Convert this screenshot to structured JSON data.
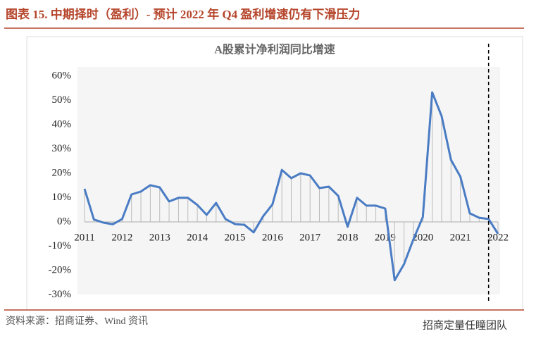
{
  "header": {
    "title": "图表 15. 中期择时（盈利）- 预计 2022 年 Q4 盈利增速仍有下滑压力"
  },
  "chart_data": {
    "type": "line",
    "title": "A股累计净利润同比增速",
    "x": [
      2011,
      2011.25,
      2011.5,
      2011.75,
      2012,
      2012.25,
      2012.5,
      2012.75,
      2013,
      2013.25,
      2013.5,
      2013.75,
      2014,
      2014.25,
      2014.5,
      2014.75,
      2015,
      2015.25,
      2015.5,
      2015.75,
      2016,
      2016.25,
      2016.5,
      2016.75,
      2017,
      2017.25,
      2017.5,
      2017.75,
      2018,
      2018.25,
      2018.5,
      2018.75,
      2019,
      2019.25,
      2019.5,
      2019.75,
      2020,
      2020.25,
      2020.5,
      2020.75,
      2021,
      2021.25,
      2021.5,
      2021.75,
      2022
    ],
    "series": [
      {
        "name": "A股累计净利润同比增速",
        "color": "#4a7cc4",
        "values": [
          13.6,
          1,
          -0.3,
          -1,
          1.2,
          11.3,
          12.5,
          15.1,
          14.2,
          8.4,
          9.9,
          9.9,
          7,
          2.9,
          7.8,
          1.2,
          -0.9,
          -1.2,
          -4.3,
          2.3,
          7.2,
          21.4,
          18,
          20,
          19.1,
          13.9,
          14.5,
          10.7,
          -2,
          9.9,
          6.7,
          6.7,
          5.5,
          -24,
          -17.4,
          -7.2,
          2,
          53.3,
          43.5,
          25.5,
          18.6,
          3.5,
          1.7,
          1.2,
          -4.9
        ]
      }
    ],
    "xlim": [
      2011,
      2022
    ],
    "xticks": [
      2011,
      2012,
      2013,
      2014,
      2015,
      2016,
      2017,
      2018,
      2019,
      2020,
      2021,
      2022
    ],
    "ylim": [
      -30,
      60
    ],
    "yticks": [
      {
        "value": -30,
        "label": "-30%"
      },
      {
        "value": -20,
        "label": "-20%"
      },
      {
        "value": -10,
        "label": "-10%"
      },
      {
        "value": 0,
        "label": "0%"
      },
      {
        "value": 10,
        "label": "10%"
      },
      {
        "value": 20,
        "label": "20%"
      },
      {
        "value": 30,
        "label": "30%"
      },
      {
        "value": 40,
        "label": "40%"
      },
      {
        "value": 50,
        "label": "50%"
      },
      {
        "value": 60,
        "label": "60%"
      }
    ],
    "vline": 2021.75
  },
  "footer": {
    "source": "资料来源：招商证券、Wind 资讯",
    "watermark": "招商定量任瞳团队"
  }
}
